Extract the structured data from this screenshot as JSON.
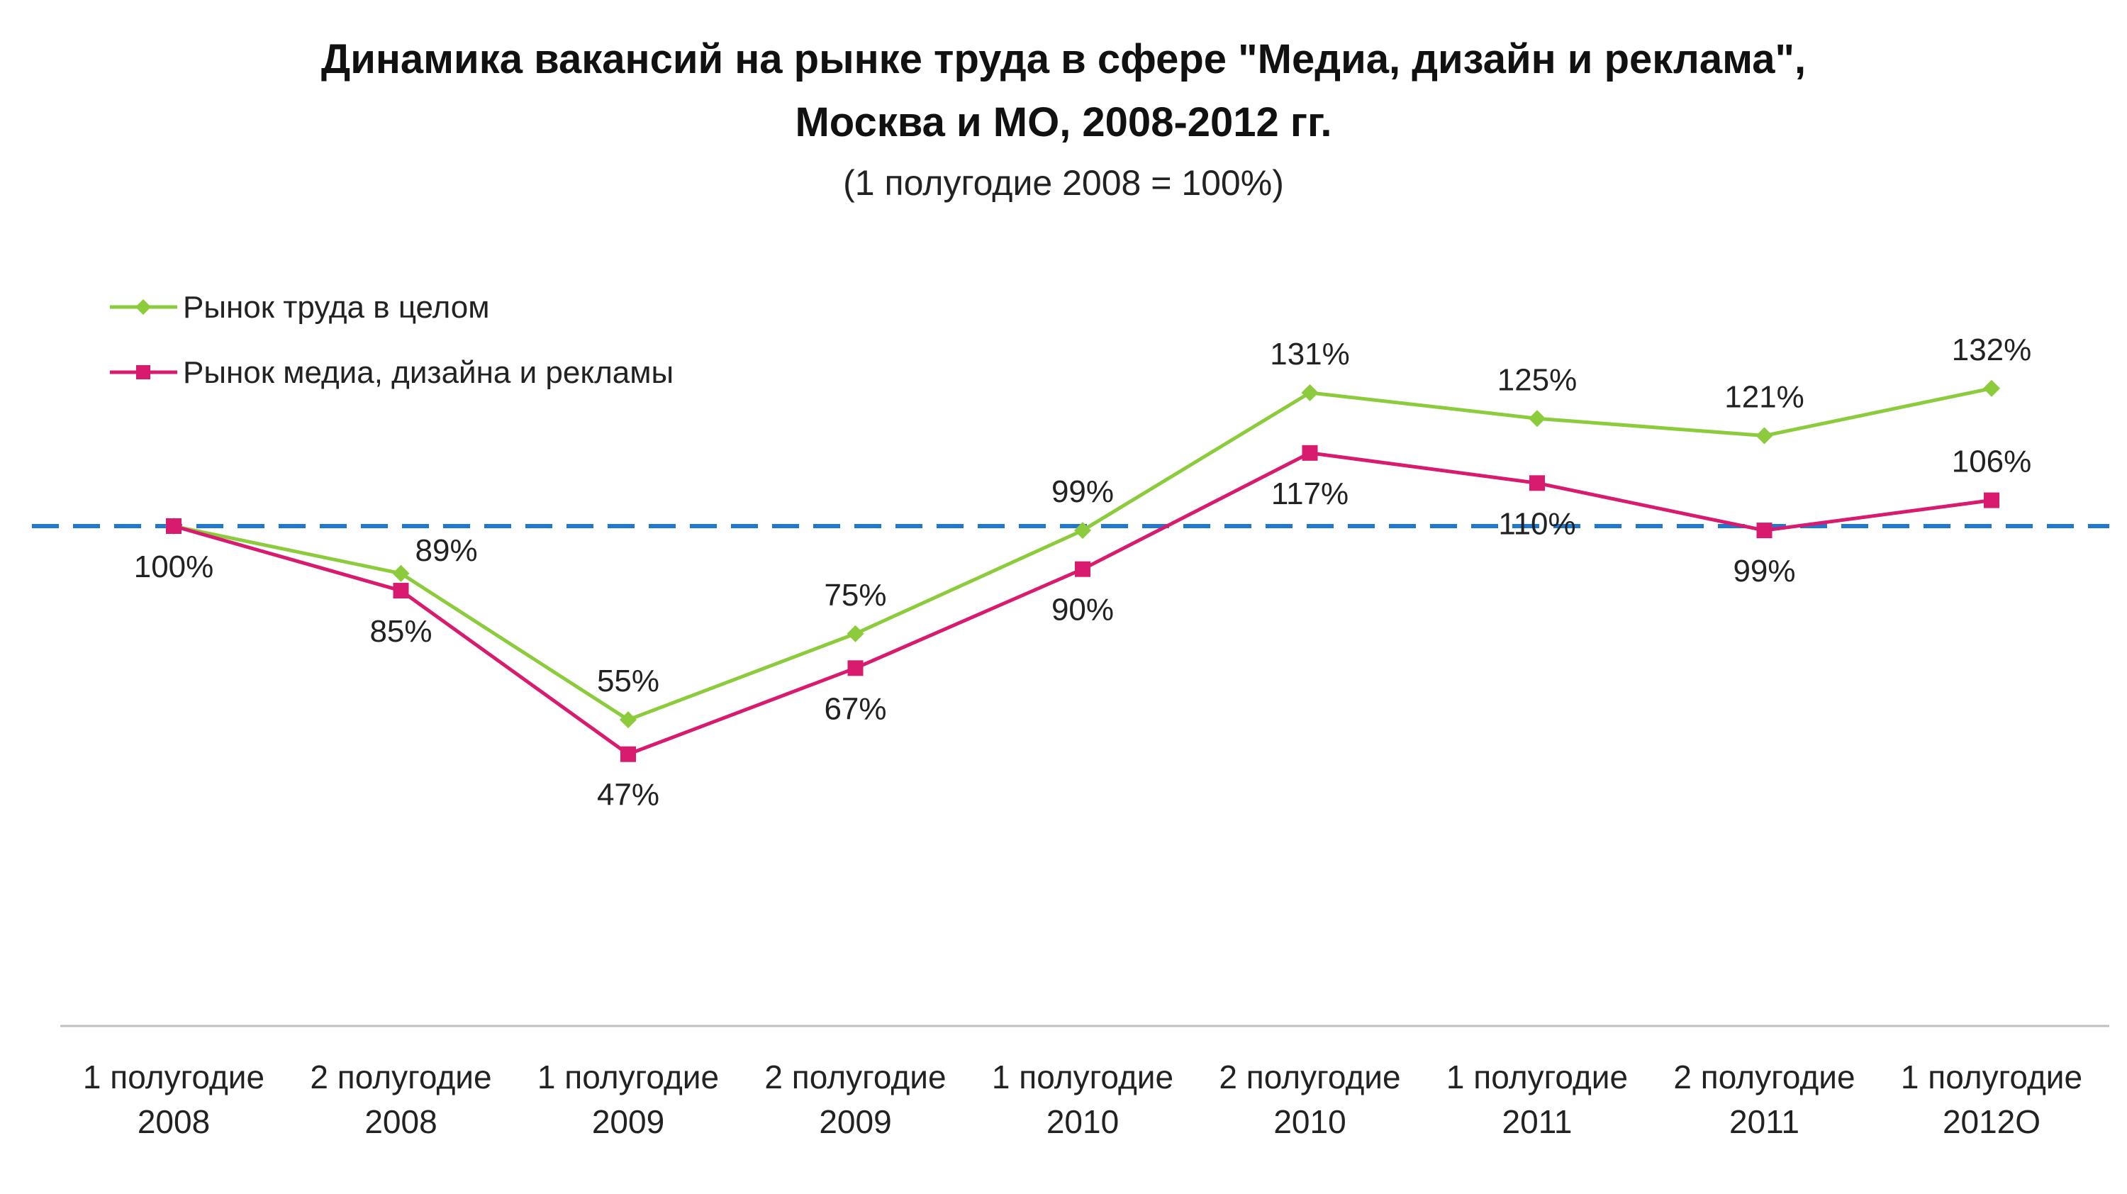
{
  "chart_data": {
    "type": "line",
    "title_lines": [
      "Динамика вакансий на рынке труда в сфере \"Медиа, дизайн и реклама\",",
      "Москва и МО, 2008-2012 гг."
    ],
    "subtitle": "(1 полугодие  2008 = 100%)",
    "categories": [
      [
        "1 полугодие",
        "2008"
      ],
      [
        "2 полугодие",
        "2008"
      ],
      [
        "1 полугодие",
        "2009"
      ],
      [
        "2 полугодие",
        "2009"
      ],
      [
        "1 полугодие",
        "2010"
      ],
      [
        "2 полугодие",
        "2010"
      ],
      [
        "1 полугодие",
        "2011"
      ],
      [
        "2 полугодие",
        "2011"
      ],
      [
        "1 полугодие",
        "2012О"
      ]
    ],
    "series": [
      {
        "name": "Рынок труда в целом",
        "color": "#8ccc3c",
        "marker": "diamond",
        "values": [
          100,
          89,
          55,
          75,
          99,
          131,
          125,
          121,
          132
        ],
        "labels": [
          "",
          "89%",
          "55%",
          "75%",
          "99%",
          "131%",
          "125%",
          "121%",
          "132%"
        ],
        "label_positions": [
          "",
          "above-right",
          "above",
          "above",
          "above",
          "above",
          "above",
          "above",
          "above"
        ]
      },
      {
        "name": "Рынок медиа, дизайна и рекламы",
        "color": "#d81b6e",
        "marker": "square",
        "values": [
          100,
          85,
          47,
          67,
          90,
          117,
          110,
          99,
          106
        ],
        "labels": [
          "100%",
          "85%",
          "47%",
          "67%",
          "90%",
          "117%",
          "110%",
          "99%",
          "106%"
        ],
        "label_positions": [
          "below",
          "below",
          "below",
          "below",
          "below",
          "below",
          "below",
          "below",
          "above"
        ]
      }
    ],
    "reference_line": {
      "value": 100,
      "style": "dashed",
      "color": "#1f78d1"
    },
    "legend_position": "top-left",
    "grid": false,
    "ylim": [
      10,
      150
    ]
  }
}
